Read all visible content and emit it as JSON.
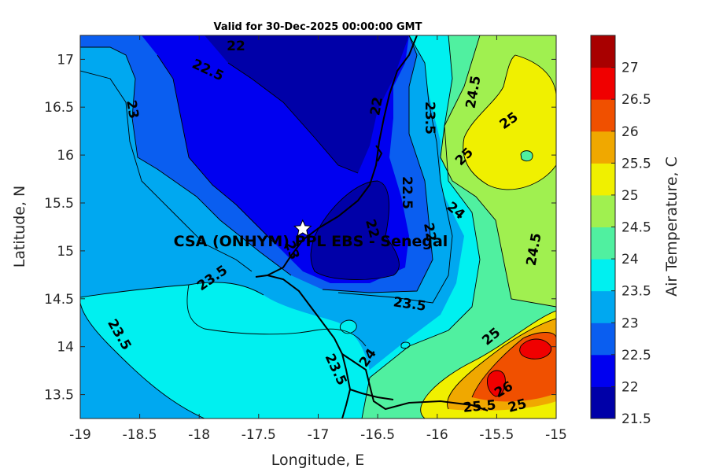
{
  "title": "Valid for 30-Dec-2025 00:00:00 GMT",
  "map": {
    "xlabel": "Longitude, E",
    "ylabel": "Latitude, N",
    "xlim": [
      -19,
      -15
    ],
    "ylim": [
      13.25,
      17.25
    ],
    "xticks": [
      "-19",
      "-18.5",
      "-18",
      "-17.5",
      "-17",
      "-16.5",
      "-16",
      "-15.5",
      "-15"
    ],
    "yticks": [
      "13.5",
      "14",
      "14.5",
      "15",
      "15.5",
      "16",
      "16.5",
      "17"
    ],
    "station": {
      "label": "CSA (ONHYM) PPL EBS - Senegal",
      "lon": -17.13,
      "lat": 15.23,
      "marker": "star"
    },
    "contour_labels": [
      "22",
      "22.5",
      "23",
      "22",
      "23.5",
      "24.5",
      "25",
      "25",
      "22.5",
      "24",
      "22",
      "24.5",
      "22",
      "23",
      "23.5",
      "23.5",
      "23.5",
      "23.5",
      "24",
      "25",
      "26",
      "25.5",
      "25"
    ]
  },
  "colorbar": {
    "label": "Air Temperature, C",
    "levels": [
      "21.5",
      "22",
      "22.5",
      "23",
      "23.5",
      "24",
      "24.5",
      "25",
      "25.5",
      "26",
      "26.5",
      "27"
    ],
    "colors": [
      "#0000a8",
      "#0000f0",
      "#0a5ef0",
      "#00a8f0",
      "#00f0f0",
      "#50f0a0",
      "#a0f050",
      "#f0f000",
      "#f0a800",
      "#f05000",
      "#f00000",
      "#a80000"
    ]
  }
}
